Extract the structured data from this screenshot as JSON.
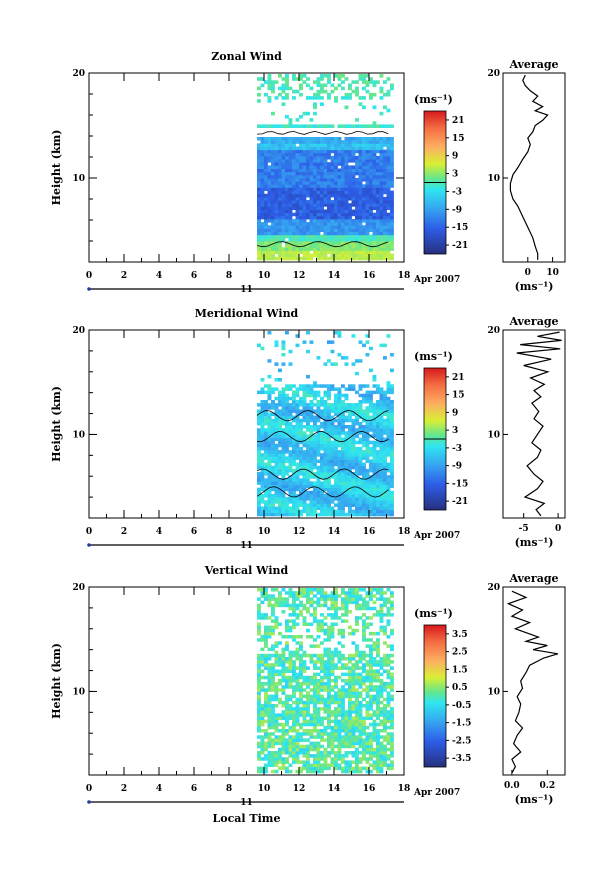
{
  "chart_data": [
    {
      "type": "heatmap",
      "title": "Zonal Wind",
      "ylabel": "Height (km)",
      "xlim": [
        0,
        18
      ],
      "ylim": [
        2,
        20
      ],
      "x_ticks": [
        "0",
        "2",
        "4",
        "6",
        "8",
        "10",
        "12",
        "14",
        "16",
        "18"
      ],
      "y_ticks": [
        "10",
        "20"
      ],
      "date_label": "11",
      "date_suffix": "Apr 2007",
      "data_time_range": [
        9.6,
        17.2
      ],
      "colorbar": {
        "unit": "(ms⁻¹)",
        "range": [
          -24,
          24
        ],
        "ticks": [
          "21",
          "15",
          "9",
          "3",
          "-3",
          "-9",
          "-15",
          "-21"
        ]
      },
      "profile": {
        "title": "Average",
        "xlim": [
          -10,
          15
        ],
        "x_ticks": [
          "0",
          "10"
        ],
        "xlabel": "(ms⁻¹)",
        "y_ticks": [
          "10",
          "20"
        ],
        "points": [
          [
            4,
            2.2
          ],
          [
            4,
            2.8
          ],
          [
            3,
            3.5
          ],
          [
            2,
            4.3
          ],
          [
            0,
            5.3
          ],
          [
            -2,
            6.3
          ],
          [
            -4,
            7.3
          ],
          [
            -6,
            8
          ],
          [
            -7,
            8.8
          ],
          [
            -7,
            9.5
          ],
          [
            -6,
            10.3
          ],
          [
            -4,
            11
          ],
          [
            -2,
            11.8
          ],
          [
            0,
            12.5
          ],
          [
            1,
            13.2
          ],
          [
            0,
            13.8
          ],
          [
            2,
            14.4
          ],
          [
            3,
            15
          ],
          [
            6,
            15.5
          ],
          [
            8,
            16
          ],
          [
            3,
            16.4
          ],
          [
            6,
            16.8
          ],
          [
            2,
            17.3
          ],
          [
            4,
            17.8
          ],
          [
            1,
            18.3
          ],
          [
            -1,
            18.8
          ],
          [
            -2,
            19.3
          ],
          [
            -1,
            19.8
          ]
        ]
      }
    },
    {
      "type": "heatmap",
      "title": "Meridional Wind",
      "ylabel": "Height (km)",
      "xlim": [
        0,
        18
      ],
      "ylim": [
        2,
        20
      ],
      "x_ticks": [
        "0",
        "2",
        "4",
        "6",
        "8",
        "10",
        "12",
        "14",
        "16",
        "18"
      ],
      "y_ticks": [
        "10",
        "20"
      ],
      "date_label": "11",
      "date_suffix": "Apr 2007",
      "data_time_range": [
        9.6,
        17.2
      ],
      "colorbar": {
        "unit": "(ms⁻¹)",
        "range": [
          -24,
          24
        ],
        "ticks": [
          "21",
          "15",
          "9",
          "3",
          "-3",
          "-9",
          "-15",
          "-21"
        ]
      },
      "profile": {
        "title": "Average",
        "xlim": [
          -8,
          1
        ],
        "x_ticks": [
          "-5",
          "0"
        ],
        "xlabel": "(ms⁻¹)",
        "y_ticks": [
          "10",
          "20"
        ],
        "points": [
          [
            -2.5,
            2.2
          ],
          [
            -3.2,
            2.8
          ],
          [
            -2,
            3.4
          ],
          [
            -4.8,
            4
          ],
          [
            -3,
            4.8
          ],
          [
            -2.2,
            5.5
          ],
          [
            -3.5,
            6.2
          ],
          [
            -4.5,
            7
          ],
          [
            -3,
            7.8
          ],
          [
            -2.5,
            8.5
          ],
          [
            -3.8,
            9.2
          ],
          [
            -3,
            10
          ],
          [
            -2.2,
            10.8
          ],
          [
            -3.5,
            11.5
          ],
          [
            -2.8,
            12.2
          ],
          [
            -3.8,
            13
          ],
          [
            -2.5,
            13.6
          ],
          [
            -3.5,
            14.2
          ],
          [
            -2,
            14.8
          ],
          [
            -4,
            15.4
          ],
          [
            -1.5,
            16
          ],
          [
            -5,
            16.6
          ],
          [
            -1,
            17.2
          ],
          [
            -6,
            17.8
          ],
          [
            0.3,
            18.2
          ],
          [
            -5.5,
            18.6
          ],
          [
            0.5,
            19
          ],
          [
            -3,
            19.4
          ],
          [
            0.2,
            19.8
          ]
        ]
      }
    },
    {
      "type": "heatmap",
      "title": "Vertical Wind",
      "ylabel": "Height (km)",
      "xlabel": "Local Time",
      "xlim": [
        0,
        18
      ],
      "ylim": [
        2,
        20
      ],
      "x_ticks": [
        "0",
        "2",
        "4",
        "6",
        "8",
        "10",
        "12",
        "14",
        "16",
        "18"
      ],
      "y_ticks": [
        "10",
        "20"
      ],
      "date_label": "11",
      "date_suffix": "Apr 2007",
      "data_time_range": [
        9.6,
        17.2
      ],
      "colorbar": {
        "unit": "(ms⁻¹)",
        "range": [
          -4,
          4
        ],
        "ticks": [
          "3.5",
          "2.5",
          "1.5",
          "0.5",
          "-0.5",
          "-1.5",
          "-2.5",
          "-3.5"
        ]
      },
      "profile": {
        "title": "Average",
        "xlim": [
          -0.05,
          0.3
        ],
        "x_ticks": [
          "0.0",
          "0.2"
        ],
        "xlabel": "(ms⁻¹)",
        "y_ticks": [
          "10",
          "20"
        ],
        "points": [
          [
            0.0,
            2.2
          ],
          [
            0.02,
            2.8
          ],
          [
            0.0,
            3.5
          ],
          [
            0.05,
            4.2
          ],
          [
            0.01,
            5
          ],
          [
            0.03,
            5.8
          ],
          [
            0.06,
            6.5
          ],
          [
            0.02,
            7.2
          ],
          [
            0.04,
            8
          ],
          [
            0.05,
            8.8
          ],
          [
            0.03,
            9.5
          ],
          [
            0.06,
            10.3
          ],
          [
            0.05,
            11
          ],
          [
            0.08,
            11.8
          ],
          [
            0.1,
            12.5
          ],
          [
            0.18,
            13.2
          ],
          [
            0.26,
            13.6
          ],
          [
            0.12,
            14
          ],
          [
            0.2,
            14.4
          ],
          [
            0.08,
            14.8
          ],
          [
            0.15,
            15.2
          ],
          [
            0.02,
            16
          ],
          [
            0.1,
            16.6
          ],
          [
            0.0,
            17.2
          ],
          [
            0.06,
            17.8
          ],
          [
            -0.02,
            18.4
          ],
          [
            0.08,
            19
          ],
          [
            0.0,
            19.6
          ]
        ]
      }
    }
  ]
}
